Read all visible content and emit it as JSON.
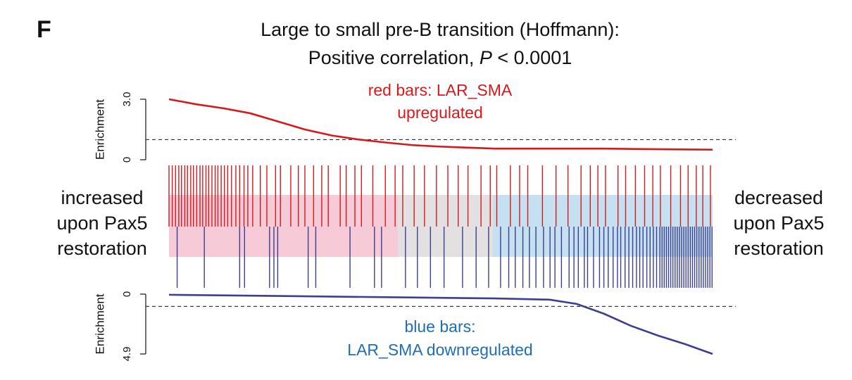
{
  "chart_data": {
    "type": "barcode",
    "panel": "F",
    "title": "Large to small pre-B transition (Hoffmann):",
    "subtitle": [
      "Positive correlation,",
      "P",
      "< 0.0001"
    ],
    "xlim": [
      0,
      100
    ],
    "left_label": [
      "increased",
      "upon Pax5",
      "restoration"
    ],
    "right_label": [
      "decreased",
      "upon Pax5",
      "restoration"
    ],
    "up": {
      "label": [
        "red bars: LAR_SMA",
        "upregulated"
      ],
      "color": "#d7191c",
      "label_color": "#d7191c",
      "ylabel": "Enrichment",
      "ylim": [
        0,
        3
      ],
      "yticks": [
        0,
        {
          "value": 3,
          "label": "3.0"
        }
      ],
      "reference": 1,
      "x": [
        0,
        5,
        10,
        15,
        20,
        25,
        30,
        35,
        40,
        45,
        50,
        55,
        60,
        70,
        80,
        90,
        100
      ],
      "values": [
        3.0,
        2.75,
        2.55,
        2.3,
        1.9,
        1.5,
        1.2,
        1.0,
        0.85,
        0.72,
        0.65,
        0.6,
        0.55,
        0.55,
        0.55,
        0.52,
        0.5
      ],
      "positions": [
        0,
        0.6,
        1.2,
        1.8,
        2.3,
        2.9,
        3.4,
        4.0,
        4.5,
        5.1,
        5.7,
        6.2,
        6.8,
        7.3,
        7.9,
        8.5,
        9.0,
        9.6,
        10.2,
        10.8,
        11.5,
        12.3,
        13.0,
        13.8,
        14.5,
        15.4,
        16.8,
        18.0,
        19.6,
        20.5,
        22.4,
        23.8,
        25.0,
        26.6,
        28.1,
        29.3,
        31.5,
        32.6,
        34.2,
        35.4,
        37.5,
        39.8,
        41.6,
        43.0,
        45.1,
        47.0,
        49.2,
        51.3,
        53.2,
        55.0,
        57.4,
        59.1,
        60.3,
        62.8,
        64.5,
        66.0,
        68.7,
        71.2,
        73.4,
        75.8,
        77.5,
        78.9,
        80.3,
        82.6,
        84.0,
        85.8,
        87.5,
        89.0,
        90.4,
        92.3,
        94.1,
        95.5,
        97.0,
        98.2,
        99.6
      ]
    },
    "down": {
      "label": [
        "blue bars:",
        "LAR_SMA downregulated"
      ],
      "color": "#3a3f8f",
      "label_color": "#1f6db3",
      "ylabel": "Enrichment",
      "ylim": [
        0,
        4.9
      ],
      "yticks": [
        0,
        4.9
      ],
      "reference": 1,
      "x": [
        0,
        20,
        40,
        60,
        70,
        75,
        80,
        85,
        90,
        95,
        100
      ],
      "values": [
        0.05,
        0.15,
        0.25,
        0.35,
        0.45,
        0.8,
        1.6,
        2.6,
        3.4,
        4.1,
        4.9
      ],
      "positions": [
        1.5,
        6.5,
        13.0,
        13.9,
        18.5,
        19.3,
        20.0,
        25.6,
        27.0,
        33.3,
        37.8,
        39.1,
        43.5,
        45.7,
        48.1,
        50.6,
        54.0,
        56.5,
        58.8,
        61.0,
        62.5,
        63.7,
        65.1,
        66.3,
        67.5,
        68.9,
        70.1,
        71.0,
        72.2,
        73.6,
        74.5,
        75.3,
        76.4,
        77.0,
        78.1,
        79.2,
        80.0,
        80.8,
        81.7,
        82.5,
        83.1,
        83.9,
        84.6,
        85.3,
        86.0,
        86.6,
        87.2,
        87.9,
        88.5,
        89.1,
        89.7,
        90.3,
        90.7,
        91.1,
        91.5,
        91.9,
        92.3,
        92.7,
        93.1,
        93.5,
        93.9,
        94.3,
        94.7,
        95.1,
        95.5,
        95.9,
        96.3,
        96.7,
        97.1,
        97.5,
        97.9,
        98.3,
        98.7,
        99.1,
        99.5,
        99.9
      ]
    }
  }
}
